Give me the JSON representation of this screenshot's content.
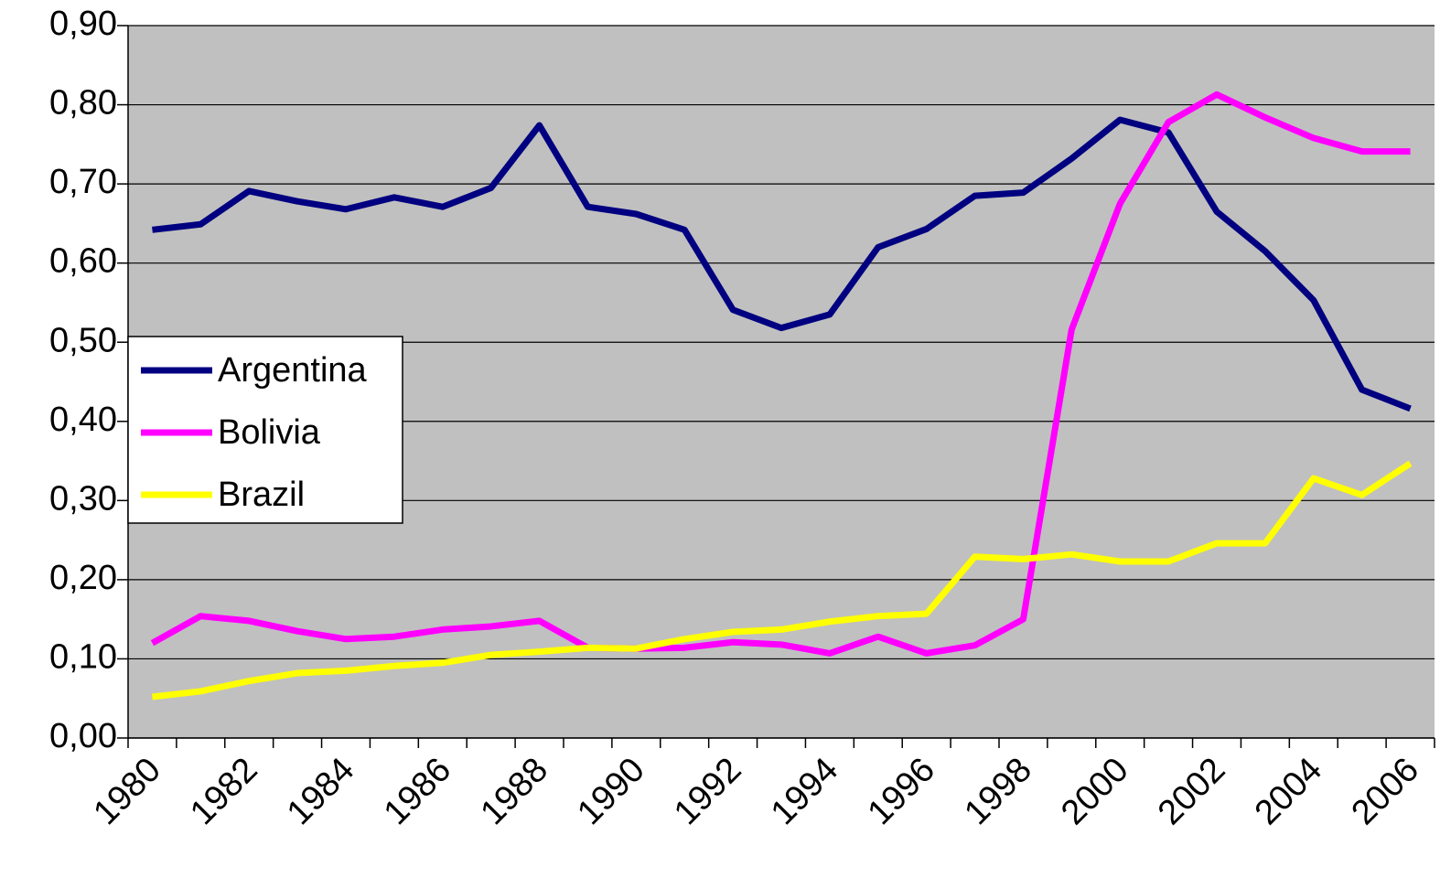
{
  "chart_data": {
    "type": "line",
    "categories": [
      "1980",
      null,
      "1982",
      null,
      "1984",
      null,
      "1986",
      null,
      "1988",
      null,
      "1990",
      null,
      "1992",
      null,
      "1994",
      null,
      "1996",
      null,
      "1998",
      null,
      "2000",
      null,
      "2002",
      null,
      "2004",
      null,
      "2006"
    ],
    "series": [
      {
        "name": "Argentina",
        "color": "#000080",
        "values": [
          0.642,
          0.649,
          0.691,
          0.678,
          0.668,
          0.683,
          0.671,
          0.695,
          0.774,
          0.671,
          0.662,
          0.642,
          0.541,
          0.518,
          0.535,
          0.62,
          0.643,
          0.685,
          0.689,
          0.732,
          0.781,
          0.765,
          0.665,
          0.615,
          0.553,
          0.44,
          0.416
        ]
      },
      {
        "name": "Bolivia",
        "color": "#ff00ff",
        "values": [
          0.12,
          0.154,
          0.148,
          0.135,
          0.125,
          0.128,
          0.137,
          0.141,
          0.148,
          0.114,
          0.113,
          0.114,
          0.121,
          0.118,
          0.107,
          0.128,
          0.107,
          0.117,
          0.15,
          0.516,
          0.675,
          0.778,
          0.813,
          0.784,
          0.758,
          0.741,
          0.741
        ]
      },
      {
        "name": "Brazil",
        "color": "#ffff00",
        "values": [
          0.052,
          0.059,
          0.072,
          0.082,
          0.085,
          0.091,
          0.095,
          0.105,
          0.109,
          0.114,
          0.113,
          0.125,
          0.134,
          0.137,
          0.147,
          0.154,
          0.157,
          0.229,
          0.226,
          0.232,
          0.223,
          0.223,
          0.246,
          0.246,
          0.328,
          0.307,
          0.347
        ]
      }
    ],
    "ylim": [
      0,
      0.9
    ],
    "yticks": [
      {
        "value": 0,
        "label": "0,00"
      },
      {
        "value": 0.1,
        "label": "0,10"
      },
      {
        "value": 0.2,
        "label": "0,20"
      },
      {
        "value": 0.3,
        "label": "0,30"
      },
      {
        "value": 0.4,
        "label": "0,40"
      },
      {
        "value": 0.5,
        "label": "0,50"
      },
      {
        "value": 0.6,
        "label": "0,60"
      },
      {
        "value": 0.7,
        "label": "0,70"
      },
      {
        "value": 0.8,
        "label": "0,80"
      },
      {
        "value": 0.9,
        "label": "0,90"
      }
    ],
    "grid": true,
    "plot_background": "#c0c0c0",
    "legend": "center-left"
  }
}
